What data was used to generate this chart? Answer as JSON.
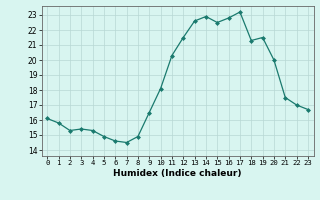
{
  "x": [
    0,
    1,
    2,
    3,
    4,
    5,
    6,
    7,
    8,
    9,
    10,
    11,
    12,
    13,
    14,
    15,
    16,
    17,
    18,
    19,
    20,
    21,
    22,
    23
  ],
  "y": [
    16.1,
    15.8,
    15.3,
    15.4,
    15.3,
    14.9,
    14.6,
    14.5,
    14.9,
    16.5,
    18.1,
    20.3,
    21.5,
    22.6,
    22.9,
    22.5,
    22.8,
    23.2,
    21.3,
    21.5,
    20.0,
    17.5,
    17.0,
    16.7
  ],
  "line_color": "#1a7a6e",
  "marker": "D",
  "marker_size": 2.0,
  "bg_color": "#d8f5f0",
  "grid_color": "#b8d8d4",
  "xlabel": "Humidex (Indice chaleur)",
  "yticks": [
    14,
    15,
    16,
    17,
    18,
    19,
    20,
    21,
    22,
    23
  ],
  "xlim": [
    -0.5,
    23.5
  ],
  "ylim": [
    13.6,
    23.6
  ]
}
